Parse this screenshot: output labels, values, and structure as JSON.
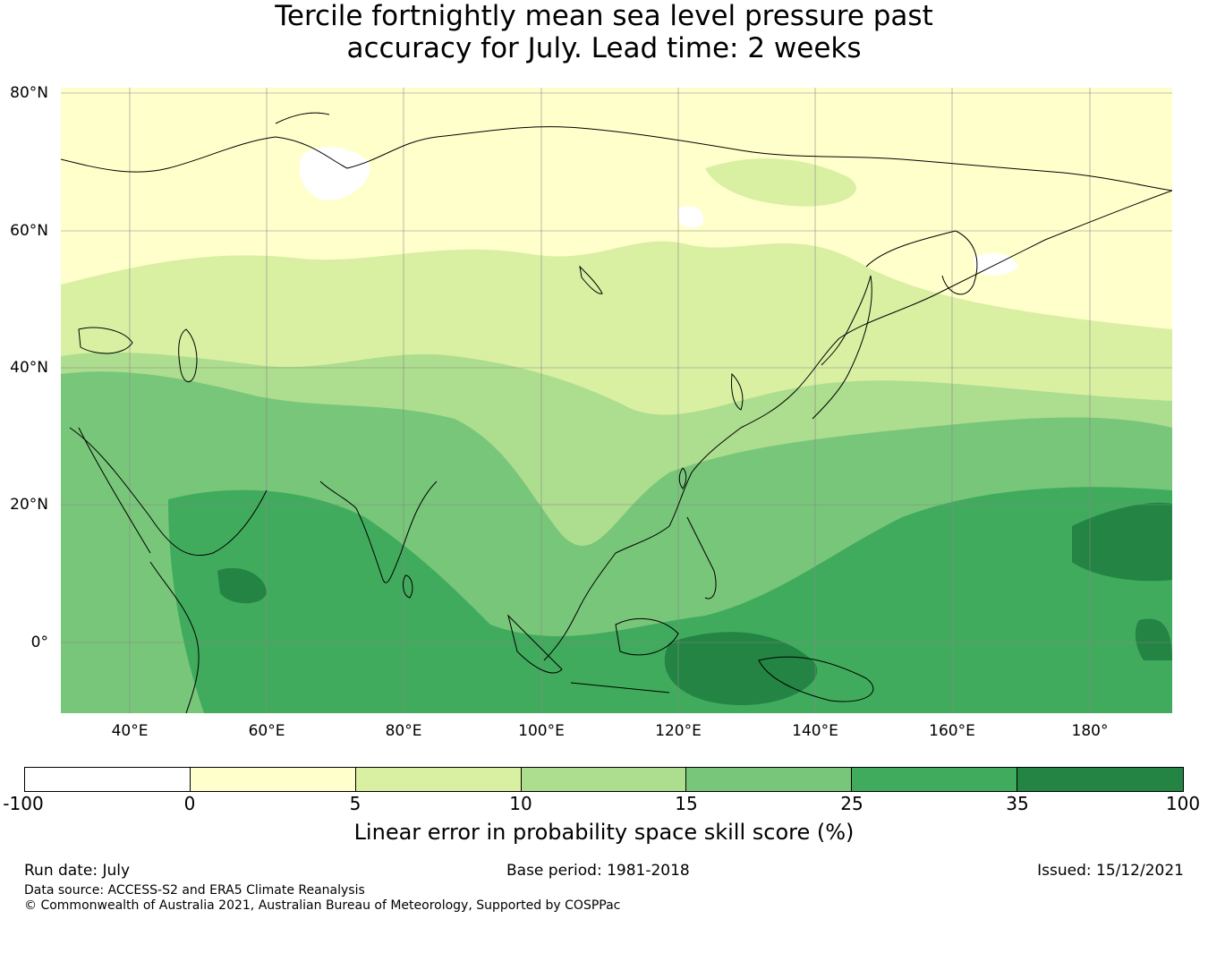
{
  "title": {
    "line1": "Tercile fortnightly mean sea level pressure past",
    "line2": "accuracy for July. Lead time: 2 weeks"
  },
  "map": {
    "lat_labels": [
      "80°N",
      "60°N",
      "40°N",
      "20°N",
      "0°"
    ],
    "lon_labels": [
      "40°E",
      "60°E",
      "80°E",
      "100°E",
      "120°E",
      "140°E",
      "160°E",
      "180°"
    ],
    "lon_extent": [
      30,
      192
    ],
    "lat_extent": [
      -11,
      80
    ],
    "colors": {
      "below_0": "#ffffff",
      "0_5": "#ffffcc",
      "5_10": "#d9f0a3",
      "10_15": "#addd8e",
      "15_25": "#78c679",
      "25_35": "#41ab5d",
      "35_100": "#238443",
      "coastline": "#000000",
      "gridline": "#888888"
    }
  },
  "colorbar": {
    "ticks": [
      "-100",
      "0",
      "5",
      "10",
      "15",
      "25",
      "35",
      "100"
    ],
    "segments": [
      {
        "from": -100,
        "to": 0,
        "color": "#ffffff"
      },
      {
        "from": 0,
        "to": 5,
        "color": "#ffffcc"
      },
      {
        "from": 5,
        "to": 10,
        "color": "#d9f0a3"
      },
      {
        "from": 10,
        "to": 15,
        "color": "#addd8e"
      },
      {
        "from": 15,
        "to": 25,
        "color": "#78c679"
      },
      {
        "from": 25,
        "to": 35,
        "color": "#41ab5d"
      },
      {
        "from": 35,
        "to": 100,
        "color": "#238443"
      }
    ],
    "label": "Linear error in probability space skill score (%)"
  },
  "footer": {
    "run_date": "Run date: July",
    "base_period": "Base period: 1981-2018",
    "issued": "Issued: 15/12/2021",
    "data_source": "Data source: ACCESS-S2 and ERA5 Climate Reanalysis",
    "copyright": "© Commonwealth of Australia 2021, Australian Bureau of Meteorology, Supported by COSPPac"
  }
}
